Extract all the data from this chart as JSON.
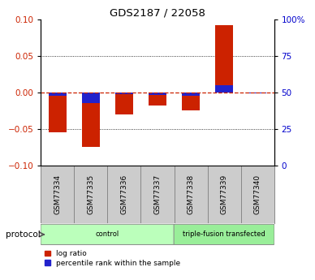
{
  "title": "GDS2187 / 22058",
  "samples": [
    "GSM77334",
    "GSM77335",
    "GSM77336",
    "GSM77337",
    "GSM77338",
    "GSM77339",
    "GSM77340"
  ],
  "log_ratio": [
    -0.055,
    -0.075,
    -0.03,
    -0.018,
    -0.025,
    0.092,
    0.0
  ],
  "percentile_rank": [
    -0.005,
    -0.015,
    -0.002,
    -0.003,
    -0.005,
    0.01,
    -0.001
  ],
  "groups": [
    {
      "label": "control",
      "indices": [
        0,
        1,
        2,
        3
      ],
      "color": "#bbffbb"
    },
    {
      "label": "triple-fusion transfected",
      "indices": [
        4,
        5,
        6
      ],
      "color": "#99ee99"
    }
  ],
  "protocol_label": "protocol",
  "ylim": [
    -0.1,
    0.1
  ],
  "yticks_left": [
    -0.1,
    -0.05,
    0,
    0.05,
    0.1
  ],
  "yticks_right": [
    0,
    25,
    50,
    75,
    100
  ],
  "yticks_right_vals": [
    -0.1,
    -0.05,
    0,
    0.05,
    0.1
  ],
  "bar_color_log": "#cc2200",
  "bar_color_pct": "#2222cc",
  "zero_line_color": "#cc2200",
  "bg_color": "#ffffff",
  "sample_bg_color": "#cccccc",
  "bar_width": 0.55,
  "legend_log": "log ratio",
  "legend_pct": "percentile rank within the sample",
  "left_label_color": "#cc2200",
  "right_label_color": "#0000cc"
}
